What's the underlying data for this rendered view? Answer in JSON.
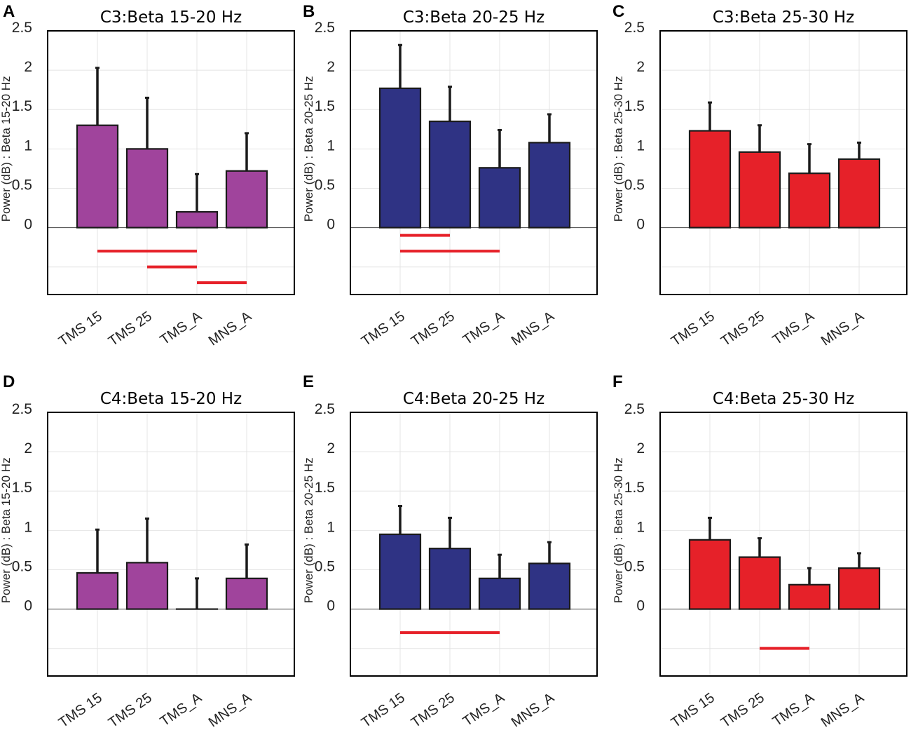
{
  "chart_data": [
    {
      "panel": "A",
      "type": "bar",
      "title": "C3:Beta 15-20 Hz",
      "ylabel": "Power (dB) : Beta 15-20 Hz",
      "xlabel": "",
      "categories": [
        "TMS 15",
        "TMS 25",
        "TMS_A",
        "MNS_A"
      ],
      "values": [
        1.3,
        1.0,
        0.2,
        0.72
      ],
      "error": [
        0.73,
        0.65,
        0.48,
        0.48
      ],
      "bar_color": "#A0449C",
      "ylim": [
        -0.85,
        2.5
      ],
      "yticks": [
        "0",
        "0.5",
        "1",
        "1.5",
        "2",
        "2.5"
      ],
      "grid": true,
      "significance": [
        {
          "from": "TMS 15",
          "to": "TMS_A",
          "level": 1
        },
        {
          "from": "TMS 25",
          "to": "TMS_A",
          "level": 2
        },
        {
          "from": "TMS_A",
          "to": "MNS_A",
          "level": 3
        }
      ]
    },
    {
      "panel": "B",
      "type": "bar",
      "title": "C3:Beta 20-25 Hz",
      "ylabel": "Power (dB) : Beta 20-25 Hz",
      "xlabel": "",
      "categories": [
        "TMS 15",
        "TMS 25",
        "TMS_A",
        "MNS_A"
      ],
      "values": [
        1.77,
        1.35,
        0.76,
        1.08
      ],
      "error": [
        0.55,
        0.44,
        0.48,
        0.36
      ],
      "bar_color": "#2F3384",
      "ylim": [
        -0.85,
        2.5
      ],
      "yticks": [
        "0",
        "0.5",
        "1",
        "1.5",
        "2",
        "2.5"
      ],
      "grid": true,
      "significance": [
        {
          "from": "TMS 15",
          "to": "TMS 25",
          "level": 0
        },
        {
          "from": "TMS 15",
          "to": "TMS_A",
          "level": 1
        }
      ]
    },
    {
      "panel": "C",
      "type": "bar",
      "title": "C3:Beta 25-30 Hz",
      "ylabel": "Power (dB) : Beta 25-30 Hz",
      "xlabel": "",
      "categories": [
        "TMS 15",
        "TMS 25",
        "TMS_A",
        "MNS_A"
      ],
      "values": [
        1.23,
        0.96,
        0.69,
        0.87
      ],
      "error": [
        0.36,
        0.34,
        0.37,
        0.21
      ],
      "bar_color": "#E62129",
      "ylim": [
        -0.85,
        2.5
      ],
      "yticks": [
        "0",
        "0.5",
        "1",
        "1.5",
        "2",
        "2.5"
      ],
      "grid": true,
      "significance": []
    },
    {
      "panel": "D",
      "type": "bar",
      "title": "C4:Beta 15-20 Hz",
      "ylabel": "Power (dB) : Beta 15-20 Hz",
      "xlabel": "",
      "categories": [
        "TMS 15",
        "TMS 25",
        "TMS_A",
        "MNS_A"
      ],
      "values": [
        0.46,
        0.59,
        0.0,
        0.39
      ],
      "error": [
        0.55,
        0.56,
        0.39,
        0.43
      ],
      "bar_color": "#A0449C",
      "ylim": [
        -0.85,
        2.5
      ],
      "yticks": [
        "0",
        "0.5",
        "1",
        "1.5",
        "2",
        "2.5"
      ],
      "grid": true,
      "significance": []
    },
    {
      "panel": "E",
      "type": "bar",
      "title": "C4:Beta 20-25 Hz",
      "ylabel": "Power (dB) : Beta 20-25 Hz",
      "xlabel": "",
      "categories": [
        "TMS 15",
        "TMS 25",
        "TMS_A",
        "MNS_A"
      ],
      "values": [
        0.95,
        0.77,
        0.39,
        0.58
      ],
      "error": [
        0.36,
        0.39,
        0.3,
        0.27
      ],
      "bar_color": "#2F3384",
      "ylim": [
        -0.85,
        2.5
      ],
      "yticks": [
        "0",
        "0.5",
        "1",
        "1.5",
        "2",
        "2.5"
      ],
      "grid": true,
      "significance": [
        {
          "from": "TMS 15",
          "to": "TMS_A",
          "level": 1
        }
      ]
    },
    {
      "panel": "F",
      "type": "bar",
      "title": "C4:Beta 25-30 Hz",
      "ylabel": "Power (dB) : Beta 25-30 Hz",
      "xlabel": "",
      "categories": [
        "TMS 15",
        "TMS 25",
        "TMS_A",
        "MNS_A"
      ],
      "values": [
        0.88,
        0.66,
        0.31,
        0.52
      ],
      "error": [
        0.28,
        0.24,
        0.21,
        0.19
      ],
      "bar_color": "#E62129",
      "ylim": [
        -0.85,
        2.5
      ],
      "yticks": [
        "0",
        "0.5",
        "1",
        "1.5",
        "2",
        "2.5"
      ],
      "grid": true,
      "significance": [
        {
          "from": "TMS 25",
          "to": "TMS_A",
          "level": 2
        }
      ]
    }
  ],
  "colors": {
    "grid": "#e4e4e4",
    "axes": "#000000",
    "bar_edge": "#1a1a1a",
    "error_bar": "#1a1a1a",
    "significance": "#E62129"
  }
}
